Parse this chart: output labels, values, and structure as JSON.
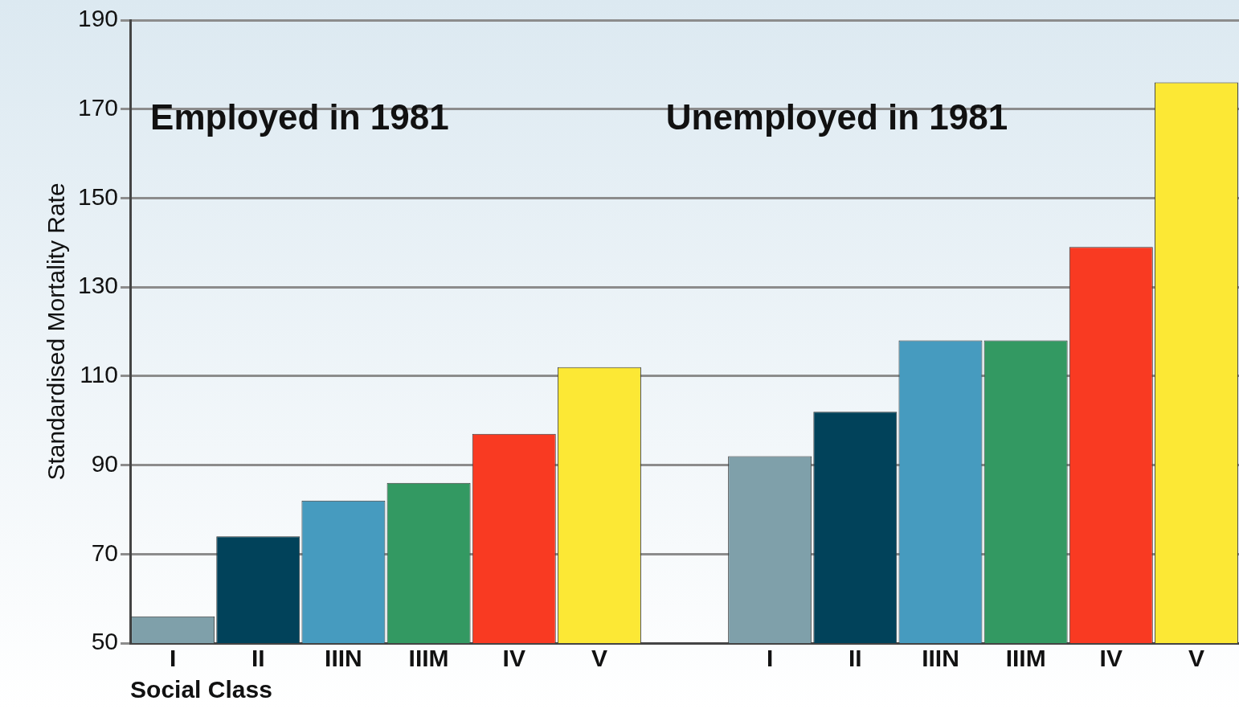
{
  "chart_data": {
    "type": "bar",
    "ylabel": "Standardised Mortality Rate",
    "xlabel": "Social Class",
    "annotations": [
      "Employed in 1981",
      "Unemployed in 1981"
    ],
    "categories": [
      "I",
      "II",
      "IIIN",
      "IIIM",
      "IV",
      "V",
      null,
      "I",
      "II",
      "IIIN",
      "IIIM",
      "IV",
      "V"
    ],
    "values": [
      56,
      74,
      82,
      86,
      97,
      112,
      null,
      92,
      102,
      118,
      118,
      139,
      176
    ],
    "colors": [
      "#7fa0aa",
      "#01425a",
      "#469bbf",
      "#339962",
      "#f93a22",
      "#fce835",
      "#ffffff",
      "#7fa0aa",
      "#01425a",
      "#469bbf",
      "#339962",
      "#f93a22",
      "#fce835"
    ],
    "ylim": [
      50,
      190
    ],
    "yticks": [
      50,
      70,
      90,
      110,
      130,
      150,
      170,
      190
    ],
    "grid": "y",
    "legend": false
  }
}
